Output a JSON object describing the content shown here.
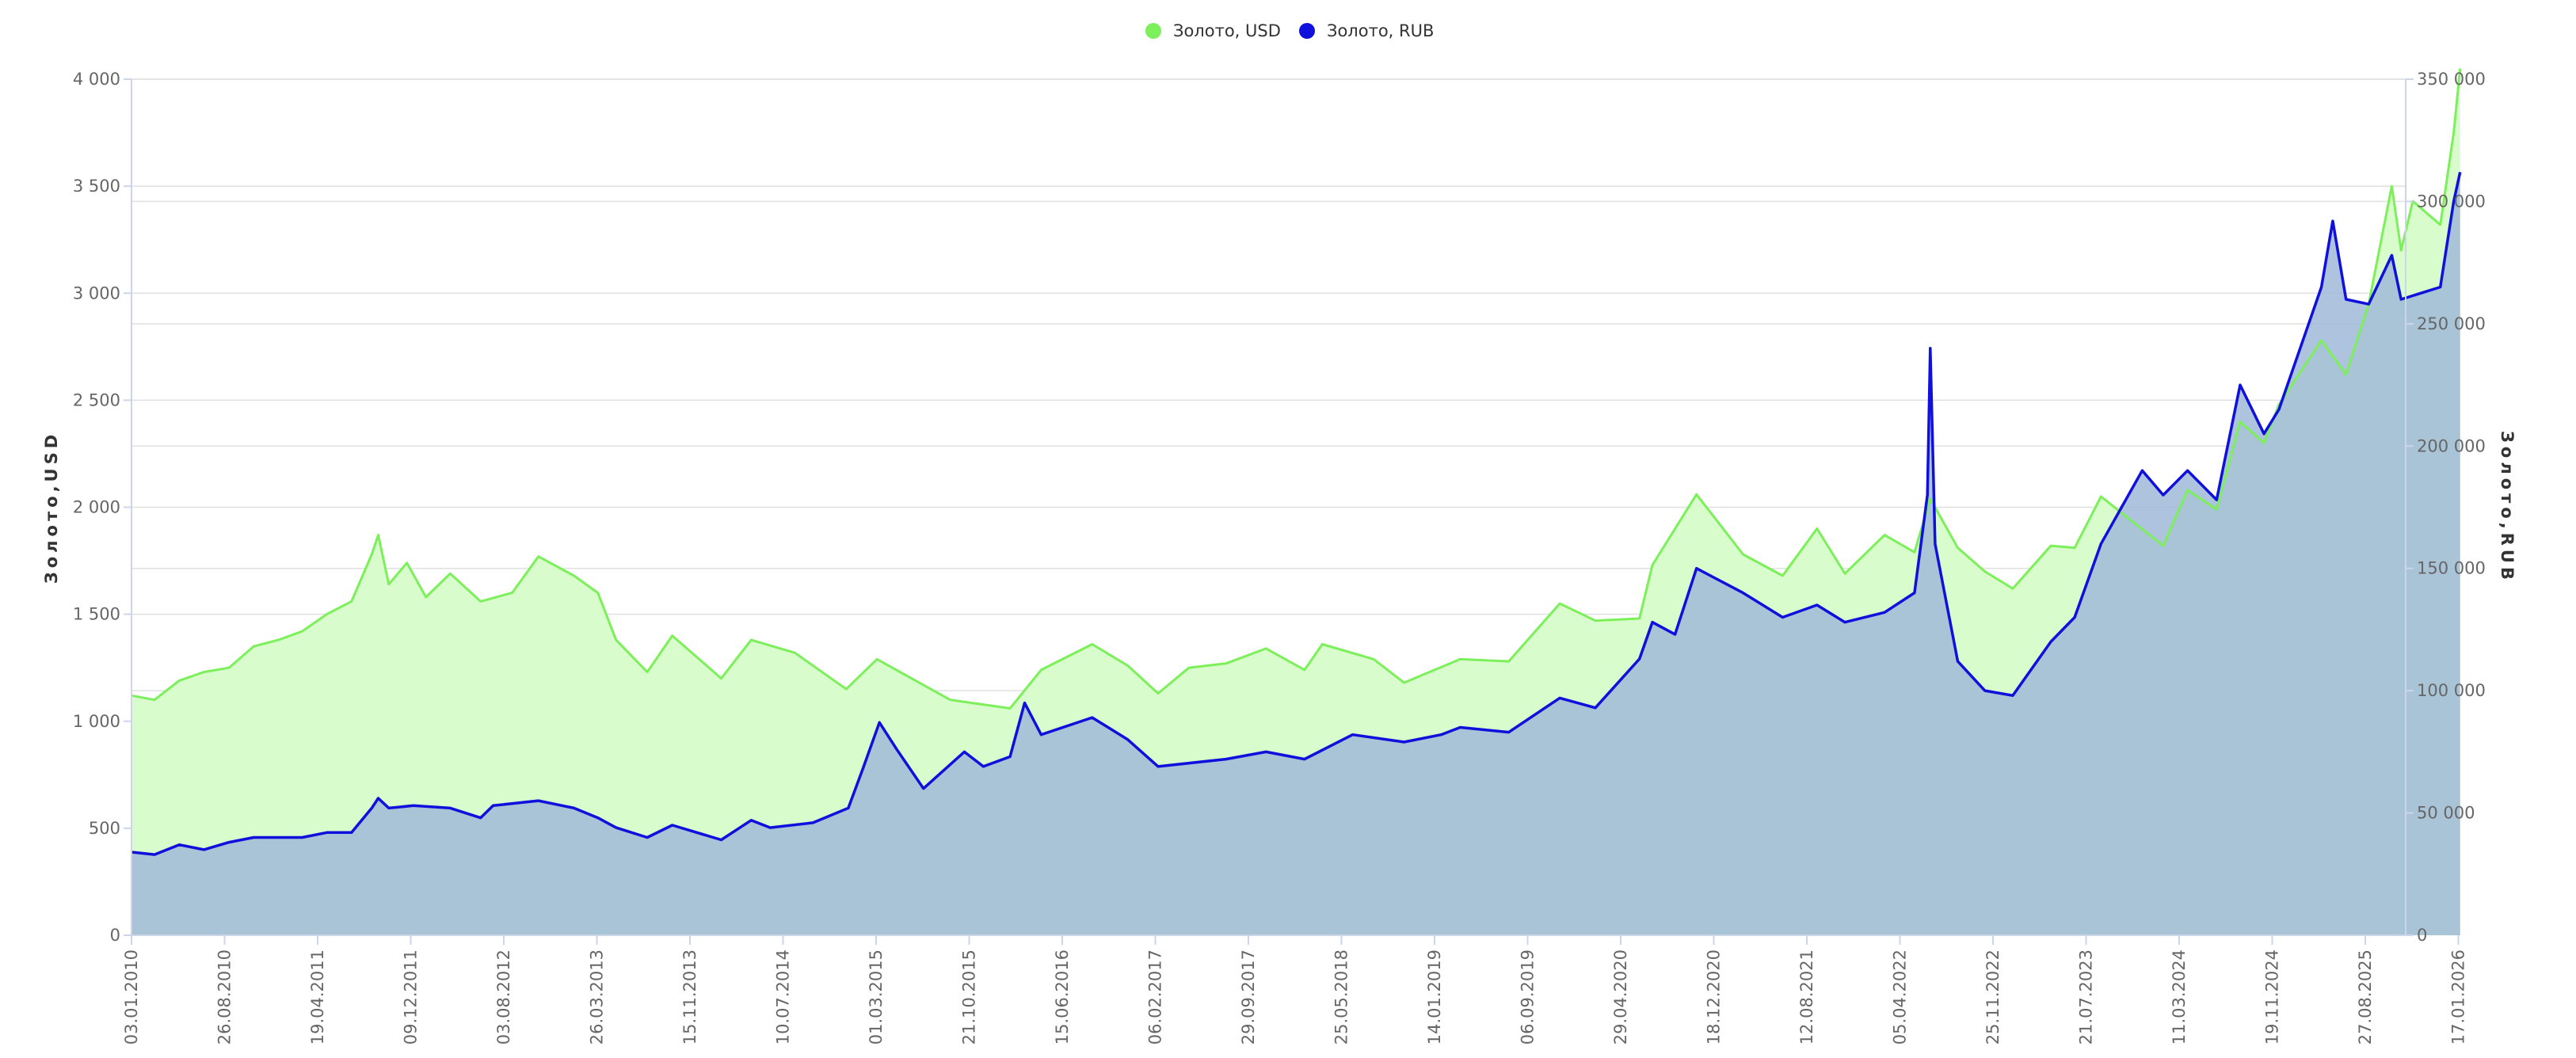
{
  "chart_data": {
    "type": "area",
    "legend": {
      "placement": "top-center"
    },
    "grid": true,
    "x_tick_labels": [
      "03.01.2010",
      "26.08.2010",
      "19.04.2011",
      "09.12.2011",
      "03.08.2012",
      "26.03.2013",
      "15.11.2013",
      "10.07.2014",
      "01.03.2015",
      "21.10.2015",
      "15.06.2016",
      "06.02.2017",
      "29.09.2017",
      "25.05.2018",
      "14.01.2019",
      "06.09.2019",
      "29.04.2020",
      "18.12.2020",
      "12.08.2021",
      "05.04.2022",
      "25.11.2022",
      "21.07.2023",
      "11.03.2024",
      "19.11.2024",
      "27.08.2025",
      "17.01.2026"
    ],
    "y_left": {
      "label": "Золото,USD",
      "range": [
        0,
        4000
      ],
      "ticks": [
        0,
        500,
        1000,
        1500,
        2000,
        2500,
        3000,
        3500,
        4000
      ],
      "tick_labels": [
        "0",
        "500",
        "1 000",
        "1 500",
        "2 000",
        "2 500",
        "3 000",
        "3 500",
        "4 000"
      ]
    },
    "y_right": {
      "label": "Золото,RUB",
      "range": [
        0,
        350000
      ],
      "ticks": [
        0,
        50000,
        100000,
        150000,
        200000,
        250000,
        300000,
        350000
      ],
      "tick_labels": [
        "0",
        "50 000",
        "100 000",
        "150 000",
        "200 000",
        "250 000",
        "300 000",
        "350 000"
      ]
    },
    "series": [
      {
        "name": "Золото, USD",
        "axis": "left",
        "color": "#7cf05a",
        "fill": "#d9fccc",
        "points": [
          [
            "2010-01-03",
            1120
          ],
          [
            "2010-03-01",
            1100
          ],
          [
            "2010-05-01",
            1190
          ],
          [
            "2010-07-01",
            1230
          ],
          [
            "2010-09-01",
            1250
          ],
          [
            "2010-11-01",
            1350
          ],
          [
            "2011-01-01",
            1380
          ],
          [
            "2011-03-01",
            1420
          ],
          [
            "2011-05-01",
            1500
          ],
          [
            "2011-07-01",
            1560
          ],
          [
            "2011-08-20",
            1780
          ],
          [
            "2011-09-05",
            1870
          ],
          [
            "2011-10-01",
            1640
          ],
          [
            "2011-11-15",
            1740
          ],
          [
            "2012-01-01",
            1580
          ],
          [
            "2012-03-01",
            1690
          ],
          [
            "2012-05-15",
            1560
          ],
          [
            "2012-08-01",
            1600
          ],
          [
            "2012-10-05",
            1770
          ],
          [
            "2013-01-01",
            1680
          ],
          [
            "2013-03-01",
            1600
          ],
          [
            "2013-04-15",
            1380
          ],
          [
            "2013-07-01",
            1230
          ],
          [
            "2013-09-01",
            1400
          ],
          [
            "2013-12-31",
            1200
          ],
          [
            "2014-03-15",
            1380
          ],
          [
            "2014-07-01",
            1320
          ],
          [
            "2014-11-05",
            1150
          ],
          [
            "2015-01-20",
            1290
          ],
          [
            "2015-07-20",
            1100
          ],
          [
            "2015-12-15",
            1060
          ],
          [
            "2016-03-01",
            1240
          ],
          [
            "2016-07-05",
            1360
          ],
          [
            "2016-10-01",
            1260
          ],
          [
            "2016-12-15",
            1130
          ],
          [
            "2017-03-01",
            1250
          ],
          [
            "2017-06-01",
            1270
          ],
          [
            "2017-09-08",
            1340
          ],
          [
            "2017-12-12",
            1240
          ],
          [
            "2018-01-25",
            1360
          ],
          [
            "2018-06-01",
            1290
          ],
          [
            "2018-08-15",
            1180
          ],
          [
            "2019-01-01",
            1290
          ],
          [
            "2019-05-01",
            1280
          ],
          [
            "2019-09-04",
            1550
          ],
          [
            "2019-12-01",
            1470
          ],
          [
            "2020-03-19",
            1480
          ],
          [
            "2020-04-20",
            1730
          ],
          [
            "2020-08-07",
            2060
          ],
          [
            "2020-11-30",
            1780
          ],
          [
            "2021-03-08",
            1680
          ],
          [
            "2021-06-01",
            1900
          ],
          [
            "2021-08-09",
            1690
          ],
          [
            "2021-11-15",
            1870
          ],
          [
            "2022-01-28",
            1790
          ],
          [
            "2022-03-08",
            2040
          ],
          [
            "2022-05-15",
            1810
          ],
          [
            "2022-07-21",
            1700
          ],
          [
            "2022-09-28",
            1620
          ],
          [
            "2022-12-31",
            1820
          ],
          [
            "2023-02-28",
            1810
          ],
          [
            "2023-05-04",
            2050
          ],
          [
            "2023-10-05",
            1820
          ],
          [
            "2023-12-04",
            2080
          ],
          [
            "2024-02-14",
            1990
          ],
          [
            "2024-04-12",
            2400
          ],
          [
            "2024-06-10",
            2300
          ],
          [
            "2024-07-17",
            2480
          ],
          [
            "2024-10-30",
            2780
          ],
          [
            "2024-12-30",
            2620
          ],
          [
            "2025-02-24",
            2950
          ],
          [
            "2025-04-22",
            3500
          ],
          [
            "2025-05-15",
            3200
          ],
          [
            "2025-06-13",
            3430
          ],
          [
            "2025-08-20",
            3320
          ],
          [
            "2025-09-22",
            3750
          ],
          [
            "2025-10-08",
            4050
          ]
        ]
      },
      {
        "name": "Золото, RUB",
        "axis": "right",
        "color": "#1010dd",
        "fill": "#a0b8d8",
        "points": [
          [
            "2010-01-03",
            34000
          ],
          [
            "2010-03-01",
            33000
          ],
          [
            "2010-05-01",
            37000
          ],
          [
            "2010-07-01",
            35000
          ],
          [
            "2010-09-01",
            38000
          ],
          [
            "2010-11-01",
            40000
          ],
          [
            "2011-03-01",
            40000
          ],
          [
            "2011-05-01",
            42000
          ],
          [
            "2011-07-01",
            42000
          ],
          [
            "2011-08-20",
            52000
          ],
          [
            "2011-09-05",
            56000
          ],
          [
            "2011-10-01",
            52000
          ],
          [
            "2011-12-01",
            53000
          ],
          [
            "2012-03-01",
            52000
          ],
          [
            "2012-05-15",
            48000
          ],
          [
            "2012-06-15",
            53000
          ],
          [
            "2012-10-05",
            55000
          ],
          [
            "2013-01-01",
            52000
          ],
          [
            "2013-03-01",
            48000
          ],
          [
            "2013-04-15",
            44000
          ],
          [
            "2013-07-01",
            40000
          ],
          [
            "2013-09-01",
            45000
          ],
          [
            "2013-12-31",
            39000
          ],
          [
            "2014-03-15",
            47000
          ],
          [
            "2014-05-01",
            44000
          ],
          [
            "2014-08-15",
            46000
          ],
          [
            "2014-11-10",
            52000
          ],
          [
            "2014-12-16",
            68000
          ],
          [
            "2015-01-26",
            87000
          ],
          [
            "2015-03-10",
            76000
          ],
          [
            "2015-05-15",
            60000
          ],
          [
            "2015-08-24",
            75000
          ],
          [
            "2015-10-10",
            69000
          ],
          [
            "2015-12-15",
            73000
          ],
          [
            "2016-01-20",
            95000
          ],
          [
            "2016-03-01",
            82000
          ],
          [
            "2016-07-05",
            89000
          ],
          [
            "2016-10-01",
            80000
          ],
          [
            "2016-12-15",
            69000
          ],
          [
            "2017-06-01",
            72000
          ],
          [
            "2017-09-08",
            75000
          ],
          [
            "2017-12-12",
            72000
          ],
          [
            "2018-04-10",
            82000
          ],
          [
            "2018-08-15",
            79000
          ],
          [
            "2018-11-15",
            82000
          ],
          [
            "2019-01-01",
            85000
          ],
          [
            "2019-05-01",
            83000
          ],
          [
            "2019-09-04",
            97000
          ],
          [
            "2019-12-01",
            93000
          ],
          [
            "2020-03-19",
            113000
          ],
          [
            "2020-04-20",
            128000
          ],
          [
            "2020-06-15",
            123000
          ],
          [
            "2020-08-07",
            150000
          ],
          [
            "2020-11-30",
            140000
          ],
          [
            "2021-03-08",
            130000
          ],
          [
            "2021-06-01",
            135000
          ],
          [
            "2021-08-09",
            128000
          ],
          [
            "2021-11-15",
            132000
          ],
          [
            "2022-01-28",
            140000
          ],
          [
            "2022-03-01",
            180000
          ],
          [
            "2022-03-08",
            240000
          ],
          [
            "2022-03-20",
            160000
          ],
          [
            "2022-05-15",
            112000
          ],
          [
            "2022-07-21",
            100000
          ],
          [
            "2022-09-28",
            98000
          ],
          [
            "2022-12-31",
            120000
          ],
          [
            "2023-02-28",
            130000
          ],
          [
            "2023-05-04",
            160000
          ],
          [
            "2023-08-14",
            190000
          ],
          [
            "2023-10-05",
            180000
          ],
          [
            "2023-12-04",
            190000
          ],
          [
            "2024-02-14",
            178000
          ],
          [
            "2024-04-12",
            225000
          ],
          [
            "2024-06-10",
            205000
          ],
          [
            "2024-07-17",
            215000
          ],
          [
            "2024-10-30",
            265000
          ],
          [
            "2024-11-27",
            292000
          ],
          [
            "2024-12-30",
            260000
          ],
          [
            "2025-02-24",
            258000
          ],
          [
            "2025-04-22",
            278000
          ],
          [
            "2025-05-15",
            260000
          ],
          [
            "2025-08-20",
            265000
          ],
          [
            "2025-09-22",
            300000
          ],
          [
            "2025-10-08",
            312000
          ]
        ]
      }
    ]
  }
}
